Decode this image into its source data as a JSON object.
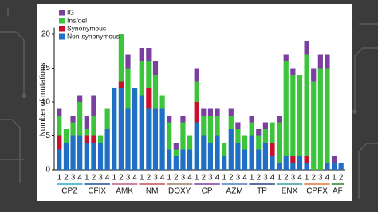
{
  "chart_data": {
    "type": "stacked_bar",
    "ylabel": "Number of mutations",
    "categories": [
      "1",
      "2",
      "3",
      "4",
      "1",
      "2",
      "3",
      "4",
      "1",
      "2",
      "3",
      "4",
      "1",
      "2",
      "3",
      "4",
      "1",
      "2",
      "3",
      "4",
      "1",
      "2",
      "3",
      "4",
      "1",
      "2",
      "3",
      "4",
      "1",
      "2",
      "3",
      "4",
      "1",
      "2",
      "3",
      "4",
      "1",
      "2",
      "3",
      "4",
      "1",
      "2"
    ],
    "groups": [
      {
        "name": "CPZ",
        "color": "#2aa8c4"
      },
      {
        "name": "CFIX",
        "color": "#1f4e9c"
      },
      {
        "name": "AMK",
        "color": "#c45a8a"
      },
      {
        "name": "NM",
        "color": "#c0504d"
      },
      {
        "name": "DOXY",
        "color": "#9b7b6b"
      },
      {
        "name": "CP",
        "color": "#7b3fa0"
      },
      {
        "name": "AZM",
        "color": "#4a7fb5"
      },
      {
        "name": "TP",
        "color": "#2c3e8c"
      },
      {
        "name": "ENX",
        "color": "#3aa0a0"
      },
      {
        "name": "CPFX",
        "color": "#e07b39"
      },
      {
        "name": "AF",
        "color": "#2e7d32"
      }
    ],
    "series": [
      {
        "name": "Non-synonymous",
        "color": "#1f6fc5",
        "values": [
          3,
          4,
          5,
          5,
          4,
          4,
          4,
          6,
          12,
          12,
          9,
          12,
          11,
          9,
          9,
          9,
          3,
          2,
          3,
          3,
          7,
          5,
          4,
          5,
          2,
          6,
          4,
          3,
          5,
          3,
          4,
          2,
          1,
          2,
          1,
          2,
          1,
          0,
          0,
          1,
          1,
          1
        ]
      },
      {
        "name": "Synonymous",
        "color": "#c8102e",
        "values": [
          2,
          0,
          0,
          0,
          1,
          1,
          0,
          0,
          0,
          1,
          0,
          0,
          0,
          3,
          0,
          0,
          0,
          0,
          0,
          0,
          3,
          0,
          0,
          0,
          0,
          0,
          0,
          0,
          0,
          0,
          0,
          2,
          0,
          0,
          1,
          0,
          1,
          0,
          0,
          0,
          0,
          0
        ]
      },
      {
        "name": "Ins/del",
        "color": "#3cc43c",
        "values": [
          3,
          2,
          2,
          5,
          1,
          3,
          1,
          3,
          0,
          7,
          6,
          0,
          5,
          4,
          5,
          2,
          4,
          1,
          4,
          2,
          3,
          3,
          4,
          3,
          2,
          2,
          2,
          2,
          2,
          2,
          2,
          3,
          6,
          14,
          12,
          12,
          15,
          13,
          15,
          14,
          0,
          0
        ]
      },
      {
        "name": "IG",
        "color": "#7b3fa0",
        "values": [
          1,
          0,
          1,
          1,
          2,
          3,
          0,
          0,
          0,
          0,
          2,
          0,
          2,
          2,
          2,
          0,
          1,
          1,
          1,
          0,
          2,
          1,
          1,
          1,
          0,
          1,
          1,
          0,
          1,
          1,
          1,
          0,
          1,
          1,
          1,
          0,
          2,
          2,
          2,
          2,
          1,
          0
        ]
      }
    ],
    "ylim": [
      0,
      21
    ],
    "yticks": [
      0,
      5,
      10,
      15,
      20
    ],
    "legend": "top-left"
  }
}
